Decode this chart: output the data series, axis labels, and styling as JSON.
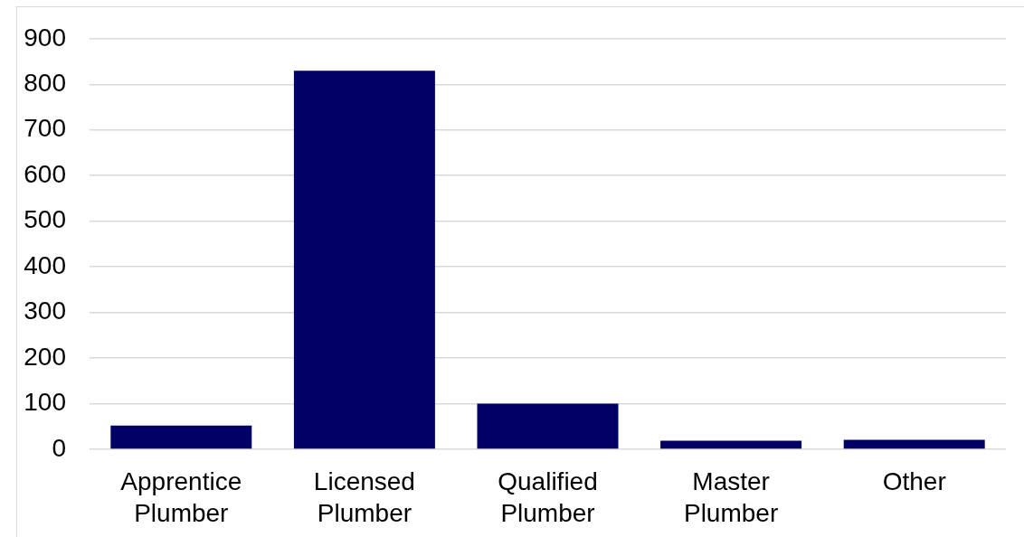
{
  "chart_data": {
    "type": "bar",
    "categories": [
      "Apprentice Plumber",
      "Licensed Plumber",
      "Qualified Plumber",
      "Master Plumber",
      "Other"
    ],
    "values": [
      52,
      830,
      100,
      19,
      21
    ],
    "color": "#000066",
    "ylim": [
      0,
      900
    ],
    "yticks": [
      0,
      100,
      200,
      300,
      400,
      500,
      600,
      700,
      800,
      900
    ],
    "grid": "y"
  }
}
